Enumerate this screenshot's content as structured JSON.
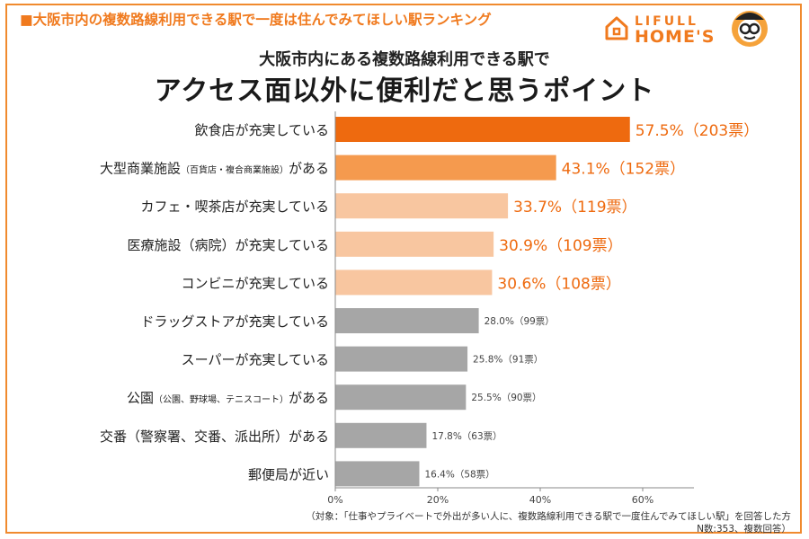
{
  "header": {
    "ranking_title": "■大阪市内の複数路線利用できる駅で一度は住んでみてほしい駅ランキング",
    "logo_line1": "LIFULL",
    "logo_line2": "HOME'S"
  },
  "chart_data": {
    "type": "bar",
    "orientation": "horizontal",
    "subtitle": "大阪市内にある複数路線利用できる駅で",
    "title": "アクセス面以外に便利だと思うポイント",
    "categories": [
      "飲食店が充実している",
      "大型商業施設（百貨店・複合商業施設）がある",
      "カフェ・喫茶店が充実している",
      "医療施設（病院）が充実している",
      "コンビニが充実している",
      "ドラッグストアが充実している",
      "スーパーが充実している",
      "公園（公園、野球場、テニスコート）がある",
      "交番（警察署、交番、派出所）がある",
      "郵便局が近い"
    ],
    "category_main": [
      "飲食店が充実している",
      "大型商業施設",
      "カフェ・喫茶店が充実している",
      "医療施設（病院）が充実している",
      "コンビニが充実している",
      "ドラッグストアが充実している",
      "スーパーが充実している",
      "公園",
      "交番（警察署、交番、派出所）がある",
      "郵便局が近い"
    ],
    "category_note": [
      "",
      "（百貨店・複合商業施設）",
      "",
      "",
      "",
      "",
      "",
      "（公園、野球場、テニスコート）",
      "",
      ""
    ],
    "category_tail": [
      "",
      "がある",
      "",
      "",
      "",
      "",
      "",
      "がある",
      "",
      ""
    ],
    "values": [
      57.5,
      43.1,
      33.7,
      30.9,
      30.6,
      28.0,
      25.8,
      25.5,
      17.8,
      16.4
    ],
    "votes": [
      203,
      152,
      119,
      109,
      108,
      99,
      91,
      90,
      63,
      58
    ],
    "value_labels": [
      "57.5%（203票）",
      "43.1%（152票）",
      "33.7%（119票）",
      "30.9%（109票）",
      "30.6%（108票）",
      "28.0%（99票）",
      "25.8%（91票）",
      "25.5%（90票）",
      "17.8%（63票）",
      "16.4%（58票）"
    ],
    "bar_colors": [
      "#ee6a0f",
      "#f59a4e",
      "#f8c6a0",
      "#f8c6a0",
      "#f8c6a0",
      "#a6a6a6",
      "#a6a6a6",
      "#a6a6a6",
      "#a6a6a6",
      "#a6a6a6"
    ],
    "label_colors": [
      "#ee6a0f",
      "#ee6a0f",
      "#ee6a0f",
      "#ee6a0f",
      "#ee6a0f",
      "#444444",
      "#444444",
      "#444444",
      "#444444",
      "#444444"
    ],
    "xlim": [
      0,
      70
    ],
    "xticks": [
      0,
      20,
      40,
      60
    ],
    "xtick_labels": [
      "0%",
      "20%",
      "40%",
      "60%"
    ],
    "grid": false
  },
  "footnote": {
    "line1": "（対象：「仕事やプライベートで外出が多い人に、複数路線利用できる駅で一度住んでみてほしい駅」を回答した方",
    "line2": "N数:353、複数回答）"
  }
}
